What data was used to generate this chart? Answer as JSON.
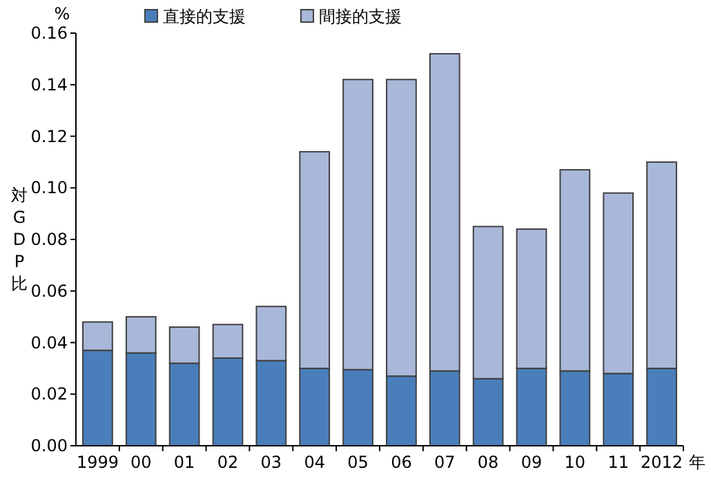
{
  "chart_data": {
    "type": "bar",
    "stacked": true,
    "categories": [
      "1999",
      "00",
      "01",
      "02",
      "03",
      "04",
      "05",
      "06",
      "07",
      "08",
      "09",
      "10",
      "11",
      "2012"
    ],
    "series": [
      {
        "name": "直接的支援",
        "color": "#4a7ebb",
        "values": [
          0.037,
          0.036,
          0.032,
          0.034,
          0.033,
          0.03,
          0.0295,
          0.027,
          0.029,
          0.026,
          0.03,
          0.029,
          0.028,
          0.03
        ]
      },
      {
        "name": "間接的支援",
        "color": "#a9b8d9",
        "values": [
          0.011,
          0.014,
          0.014,
          0.013,
          0.021,
          0.084,
          0.1125,
          0.115,
          0.123,
          0.059,
          0.054,
          0.078,
          0.07,
          0.08
        ]
      }
    ],
    "ylim": [
      0,
      0.16
    ],
    "yticks": [
      {
        "value": 0,
        "label": "0.00"
      },
      {
        "value": 0.02,
        "label": "0.02"
      },
      {
        "value": 0.04,
        "label": "0.04"
      },
      {
        "value": 0.06,
        "label": "0.06"
      },
      {
        "value": 0.08,
        "label": "0.08"
      },
      {
        "value": 0.1,
        "label": "0.10"
      },
      {
        "value": 0.12,
        "label": "0.12"
      },
      {
        "value": 0.14,
        "label": "0.14"
      },
      {
        "value": 0.16,
        "label": "0.16"
      }
    ],
    "ylabel": "対GDP比",
    "xlabel": "年",
    "annotations": [
      "%"
    ],
    "legend": "top",
    "grid": false
  }
}
